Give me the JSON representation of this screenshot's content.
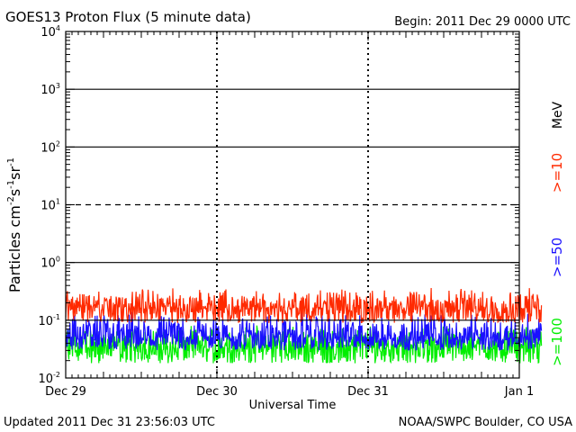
{
  "header": {
    "title": "GOES13 Proton Flux (5 minute data)",
    "begin": "Begin: 2011 Dec 29 0000 UTC"
  },
  "footer": {
    "updated": "Updated 2011 Dec 31 23:56:03 UTC",
    "credit": "NOAA/SWPC Boulder, CO USA"
  },
  "colors": {
    "ge10": "#ff2a00",
    "ge50": "#1a10ff",
    "ge100": "#00ee00",
    "axis": "#000000"
  },
  "chart_data": {
    "type": "line",
    "title": "GOES13 Proton Flux (5 minute data)",
    "xlabel": "Universal Time",
    "ylabel_main": "Particles cm",
    "ylabel_sup1": "-2",
    "ylabel_mid1": "s",
    "ylabel_sup2": "-1",
    "ylabel_mid2": "sr",
    "ylabel_sup3": "-1",
    "y_scale": "log",
    "ylim": [
      0.01,
      10000
    ],
    "y_ticks": [
      {
        "value": 10000,
        "base": "10",
        "exp": "4"
      },
      {
        "value": 1000,
        "base": "10",
        "exp": "3"
      },
      {
        "value": 100,
        "base": "10",
        "exp": "2"
      },
      {
        "value": 10,
        "base": "10",
        "exp": "1"
      },
      {
        "value": 1,
        "base": "10",
        "exp": "0"
      },
      {
        "value": 0.1,
        "base": "10",
        "exp": "-1"
      },
      {
        "value": 0.01,
        "base": "10",
        "exp": "-2"
      }
    ],
    "x_tick_labels": [
      "Dec 29",
      "Dec 30",
      "Dec 31",
      "Jan 1"
    ],
    "x_range_days": [
      0,
      3.15
    ],
    "reference_lines": [
      {
        "value": 1000,
        "style": "solid"
      },
      {
        "value": 100,
        "style": "solid"
      },
      {
        "value": 10,
        "style": "dashed"
      },
      {
        "value": 1,
        "style": "solid"
      },
      {
        "value": 0.1,
        "style": "solid"
      }
    ],
    "energy_unit": "MeV",
    "series": [
      {
        "name": ">=10",
        "color": "#ff2a00",
        "typical": 0.16,
        "min": 0.09,
        "max": 0.38
      },
      {
        "name": ">=50",
        "color": "#1a10ff",
        "typical": 0.05,
        "min": 0.03,
        "max": 0.15
      },
      {
        "name": ">=100",
        "color": "#00ee00",
        "typical": 0.035,
        "min": 0.018,
        "max": 0.085
      }
    ]
  }
}
